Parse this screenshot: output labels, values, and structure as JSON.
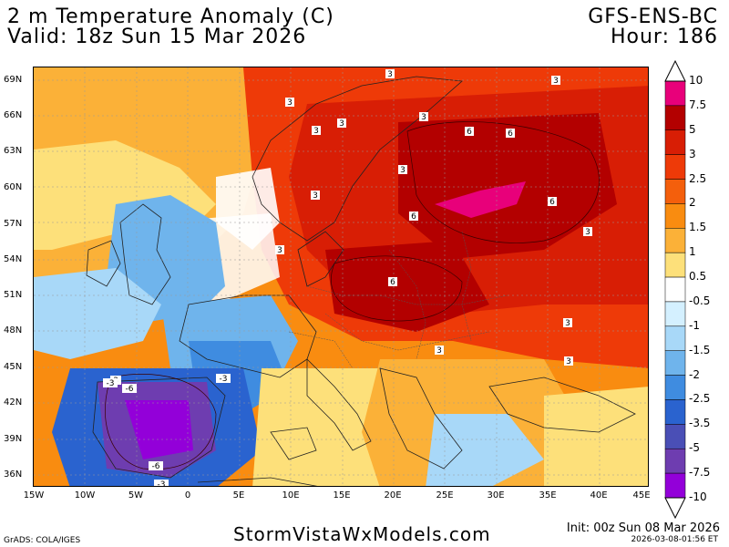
{
  "header": {
    "title": "2 m Temperature Anomaly (C)",
    "valid": "Valid: 18z Sun 15 Mar 2026",
    "model": "GFS-ENS-BC",
    "hour": "Hour: 186"
  },
  "axes": {
    "lat_labels": [
      "69N",
      "66N",
      "63N",
      "60N",
      "57N",
      "54N",
      "51N",
      "48N",
      "45N",
      "42N",
      "39N",
      "36N"
    ],
    "lon_labels": [
      "15W",
      "10W",
      "5W",
      "0",
      "5E",
      "10E",
      "15E",
      "20E",
      "25E",
      "30E",
      "35E",
      "40E",
      "45E"
    ]
  },
  "colorbar": {
    "labels": [
      "10",
      "7.5",
      "5",
      "3",
      "2.5",
      "2",
      "1.5",
      "1",
      "0.5",
      "-0.5",
      "-1",
      "-1.5",
      "-2",
      "-2.5",
      "-3.5",
      "-5",
      "-7.5",
      "-10"
    ],
    "colors": [
      "#e8007a",
      "#b30000",
      "#d81e05",
      "#ee3a08",
      "#f45f0c",
      "#f98c10",
      "#fbb138",
      "#fde07a",
      "#ffffff",
      "#d4f0ff",
      "#a8d8f8",
      "#6fb4ec",
      "#3f8ce0",
      "#2a63cf",
      "#4a4fb6",
      "#6e3db0",
      "#9300d9"
    ]
  },
  "contour_labels": [
    "3",
    "3",
    "3",
    "3",
    "3",
    "3",
    "6",
    "6",
    "3",
    "3",
    "6",
    "6",
    "3",
    "3",
    "6",
    "3",
    "3",
    "3",
    "3",
    "-3",
    "-6",
    "-3",
    "-6",
    "-3"
  ],
  "footer": {
    "site": "StormVistaWxModels.com",
    "grads": "GrADS: COLA/IGES",
    "init": "Init: 00z Sun 08 Mar 2026",
    "stamp": "2026-03-08-01:56 ET"
  }
}
